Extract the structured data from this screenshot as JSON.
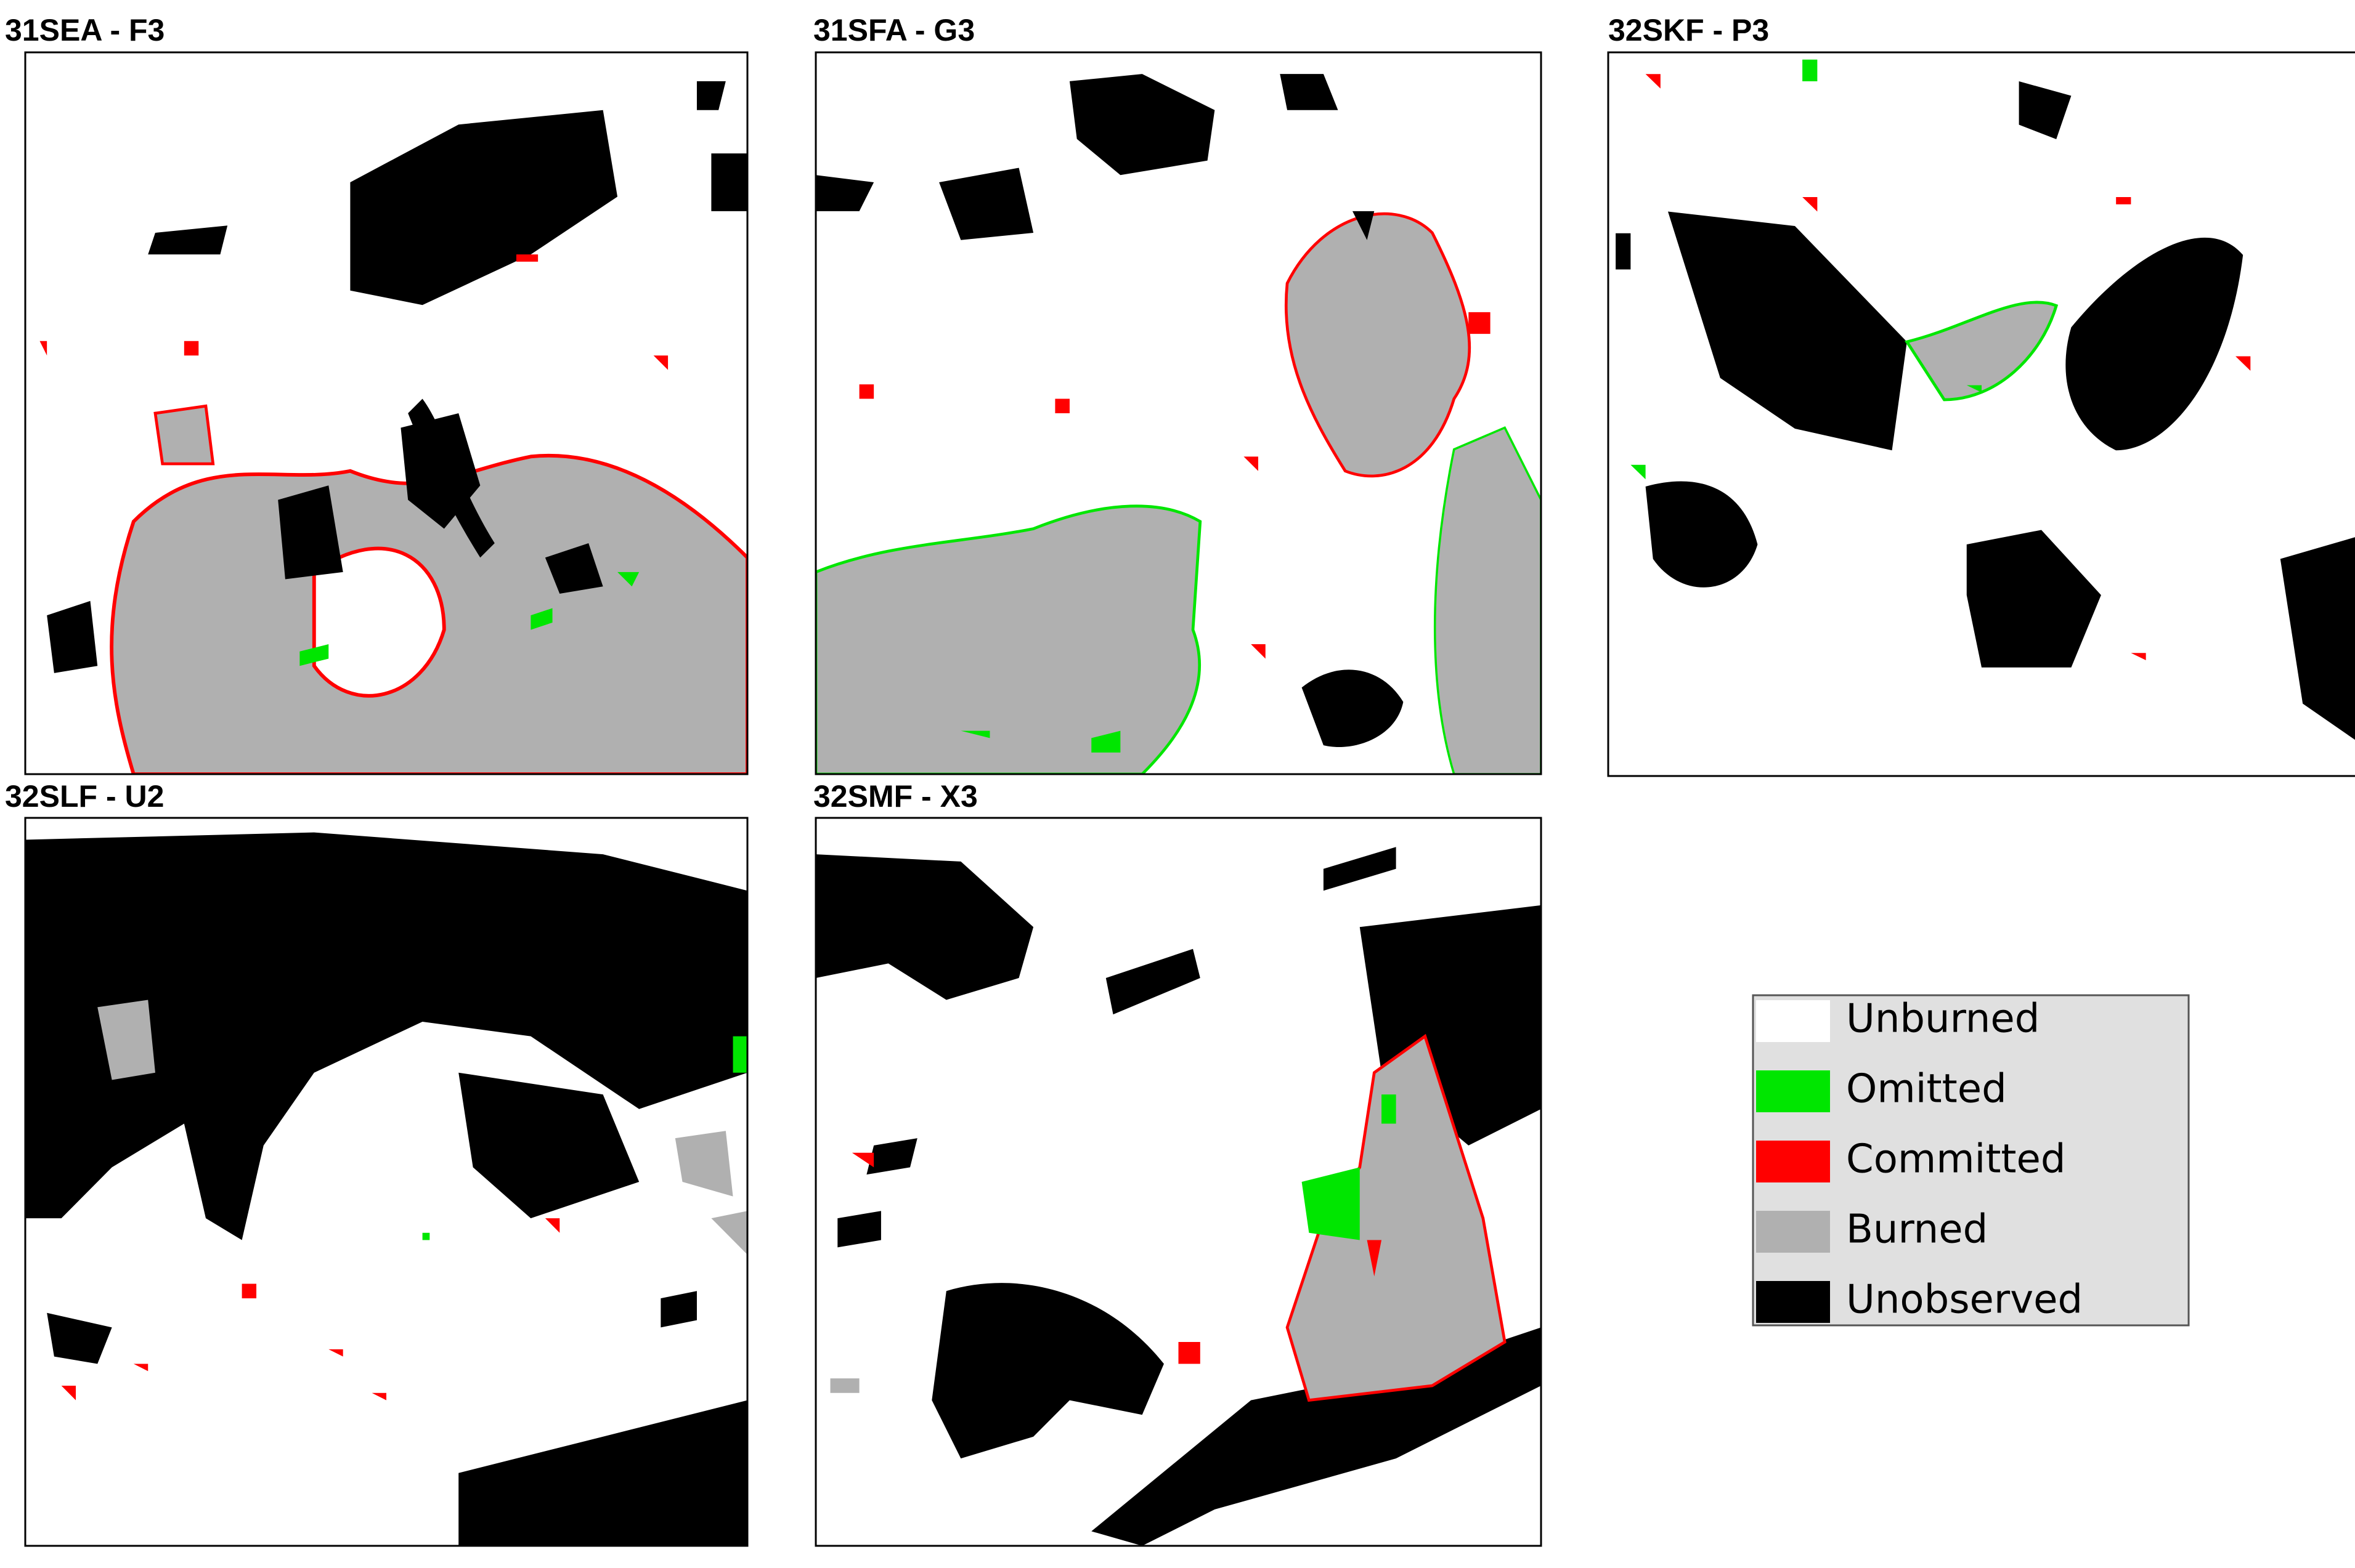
{
  "panels": [
    {
      "title": "31SEA - F3"
    },
    {
      "title": "31SFA - G3"
    },
    {
      "title": "32SKF - P3"
    },
    {
      "title": "32SLF - U2"
    },
    {
      "title": "32SMF - X3"
    }
  ],
  "legend": {
    "items": [
      {
        "label": "Unburned",
        "color": "#ffffff"
      },
      {
        "label": "Omitted",
        "color": "#00e600"
      },
      {
        "label": "Committed",
        "color": "#ff0000"
      },
      {
        "label": "Burned",
        "color": "#b0b0b0"
      },
      {
        "label": "Unobserved",
        "color": "#000000"
      }
    ]
  }
}
